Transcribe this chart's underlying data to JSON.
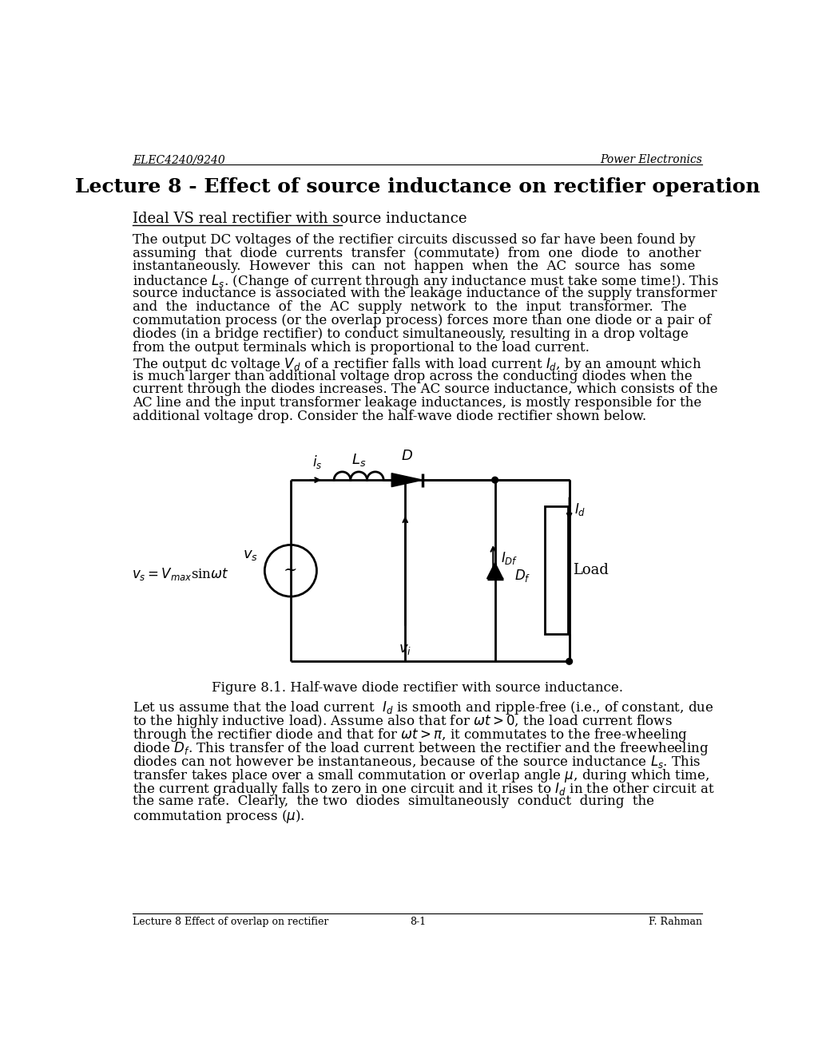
{
  "title": "Lecture 8 - Effect of source inductance on rectifier operation",
  "header_left": "ELEC4240/9240",
  "header_right": "Power Electronics",
  "footer_left": "Lecture 8 Effect of overlap on rectifier",
  "footer_center": "8-1",
  "footer_right": "F. Rahman",
  "section_heading": "Ideal VS real rectifier with source inductance",
  "figure_caption": "Figure 8.1. Half-wave diode rectifier with source inductance.",
  "bg_color": "#ffffff",
  "text_color": "#000000",
  "para1_lines": [
    "The output DC voltages of the rectifier circuits discussed so far have been found by",
    "assuming  that  diode  currents  transfer  (commutate)  from  one  diode  to  another",
    "instantaneously.  However  this  can  not  happen  when  the  AC  source  has  some",
    "inductance $L_s$. (Change of current through any inductance must take some time!). This",
    "source inductance is associated with the leakage inductance of the supply transformer",
    "and  the  inductance  of  the  AC  supply  network  to  the  input  transformer.  The",
    "commutation process (or the overlap process) forces more than one diode or a pair of",
    "diodes (in a bridge rectifier) to conduct simultaneously, resulting in a drop voltage",
    "from the output terminals which is proportional to the load current."
  ],
  "para2_lines": [
    "The output dc voltage $V_d$ of a rectifier falls with load current $I_d$, by an amount which",
    "is much larger than additional voltage drop across the conducting diodes when the",
    "current through the diodes increases. The AC source inductance, which consists of the",
    "AC line and the input transformer leakage inductances, is mostly responsible for the",
    "additional voltage drop. Consider the half-wave diode rectifier shown below."
  ],
  "para3_lines": [
    "Let us assume that the load current  $I_d$ is smooth and ripple-free (i.e., of constant, due",
    "to the highly inductive load). Assume also that for $\\omega t > 0$, the load current flows",
    "through the rectifier diode and that for $\\omega t > \\pi$, it commutates to the free-wheeling",
    "diode $D_f$. This transfer of the load current between the rectifier and the freewheeling",
    "diodes can not however be instantaneous, because of the source inductance $L_s$. This",
    "transfer takes place over a small commutation or overlap angle $\\mu$, during which time,",
    "the current gradually falls to zero in one circuit and it rises to $I_d$ in the other circuit at",
    "the same rate.  Clearly,  the two  diodes  simultaneously  conduct  during  the",
    "commutation process ($\\mu$)."
  ]
}
